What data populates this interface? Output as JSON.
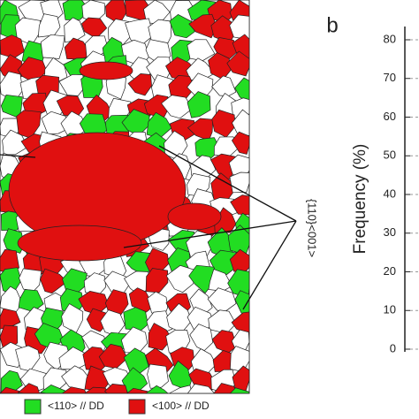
{
  "annotation": "{110}<001>",
  "legend": [
    {
      "label": "<110> // DD",
      "color": "#22dd22"
    },
    {
      "label": "<100> // DD",
      "color": "#e01010"
    }
  ],
  "panel_b": {
    "label": "b",
    "y_axis_label": "Frequency (%)",
    "ylim": [
      0,
      80
    ],
    "yticks": [
      0,
      10,
      20,
      30,
      40,
      50,
      60,
      70,
      80
    ]
  }
}
